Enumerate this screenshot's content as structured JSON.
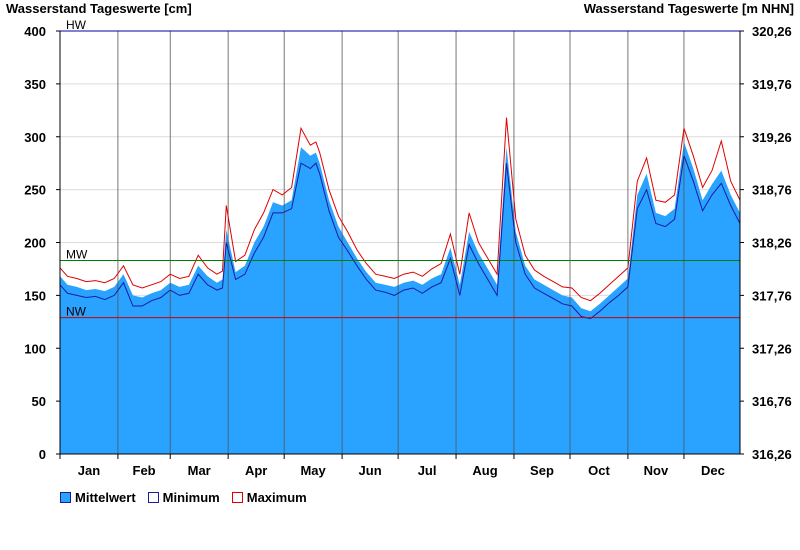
{
  "header": {
    "left_title": "Wasserstand Tageswerte [cm]",
    "right_title": "Wasserstand Tageswerte [m NHN]"
  },
  "colors": {
    "fill": "#29a3ff",
    "minimum": "#1b1b9e",
    "maximum": "#e00000",
    "hw": "#0000aa",
    "mw": "#008000",
    "nw": "#cc0000"
  },
  "chart_data": {
    "type": "area",
    "left_axis": {
      "label": "Wasserstand Tageswerte [cm]",
      "ylim": [
        0,
        400
      ],
      "ticks": [
        "0",
        "50",
        "100",
        "150",
        "200",
        "250",
        "300",
        "350",
        "400"
      ]
    },
    "right_axis": {
      "label": "Wasserstand Tageswerte [m NHN]",
      "ticks": [
        "316,26",
        "316,76",
        "317,26",
        "317,76",
        "318,26",
        "318,76",
        "319,26",
        "319,76",
        "320,26"
      ]
    },
    "months": [
      "Jan",
      "Feb",
      "Mar",
      "Apr",
      "May",
      "Jun",
      "Jul",
      "Aug",
      "Sep",
      "Oct",
      "Nov",
      "Dec"
    ],
    "reference_lines": [
      {
        "name": "HW",
        "value": 400
      },
      {
        "name": "MW",
        "value": 183
      },
      {
        "name": "NW",
        "value": 129
      }
    ],
    "series": [
      {
        "name": "Mittelwert",
        "x": [
          1,
          5,
          10,
          15,
          20,
          25,
          30,
          35,
          40,
          45,
          50,
          55,
          60,
          65,
          70,
          75,
          80,
          85,
          88,
          90,
          95,
          100,
          105,
          110,
          115,
          120,
          125,
          130,
          135,
          138,
          140,
          145,
          150,
          155,
          160,
          165,
          170,
          175,
          180,
          185,
          190,
          195,
          200,
          205,
          210,
          215,
          220,
          225,
          230,
          235,
          240,
          245,
          250,
          255,
          260,
          265,
          270,
          275,
          280,
          285,
          290,
          295,
          300,
          305,
          310,
          315,
          320,
          325,
          330,
          335,
          340,
          345,
          350,
          355,
          360,
          365
        ],
        "values": [
          168,
          160,
          158,
          155,
          156,
          154,
          158,
          170,
          150,
          148,
          152,
          155,
          162,
          158,
          160,
          178,
          168,
          162,
          165,
          212,
          172,
          178,
          200,
          215,
          238,
          235,
          240,
          290,
          282,
          285,
          275,
          240,
          215,
          200,
          185,
          172,
          162,
          160,
          158,
          162,
          164,
          160,
          166,
          170,
          195,
          160,
          210,
          190,
          175,
          160,
          290,
          210,
          178,
          165,
          160,
          155,
          150,
          148,
          138,
          135,
          142,
          150,
          158,
          166,
          245,
          265,
          228,
          225,
          232,
          295,
          270,
          240,
          255,
          268,
          245,
          228
        ]
      },
      {
        "name": "Minimum",
        "x": [
          1,
          5,
          10,
          15,
          20,
          25,
          30,
          35,
          40,
          45,
          50,
          55,
          60,
          65,
          70,
          75,
          80,
          85,
          88,
          90,
          95,
          100,
          105,
          110,
          115,
          120,
          125,
          130,
          135,
          138,
          140,
          145,
          150,
          155,
          160,
          165,
          170,
          175,
          180,
          185,
          190,
          195,
          200,
          205,
          210,
          215,
          220,
          225,
          230,
          235,
          240,
          245,
          250,
          255,
          260,
          265,
          270,
          275,
          280,
          285,
          290,
          295,
          300,
          305,
          310,
          315,
          320,
          325,
          330,
          335,
          340,
          345,
          350,
          355,
          360,
          365
        ],
        "values": [
          160,
          152,
          150,
          148,
          149,
          146,
          150,
          162,
          140,
          140,
          145,
          148,
          155,
          150,
          152,
          170,
          160,
          155,
          157,
          200,
          165,
          170,
          190,
          205,
          228,
          228,
          232,
          275,
          270,
          275,
          265,
          230,
          205,
          192,
          178,
          165,
          155,
          153,
          150,
          155,
          157,
          152,
          158,
          162,
          185,
          150,
          198,
          180,
          165,
          150,
          275,
          200,
          170,
          157,
          152,
          147,
          142,
          140,
          130,
          128,
          135,
          143,
          150,
          158,
          232,
          250,
          218,
          215,
          222,
          282,
          258,
          230,
          245,
          256,
          235,
          218
        ]
      },
      {
        "name": "Maximum",
        "x": [
          1,
          5,
          10,
          15,
          20,
          25,
          30,
          35,
          40,
          45,
          50,
          55,
          60,
          65,
          70,
          75,
          80,
          85,
          88,
          90,
          95,
          100,
          105,
          110,
          115,
          120,
          125,
          130,
          135,
          138,
          140,
          145,
          150,
          155,
          160,
          165,
          170,
          175,
          180,
          185,
          190,
          195,
          200,
          205,
          210,
          215,
          220,
          225,
          230,
          235,
          240,
          245,
          250,
          255,
          260,
          265,
          270,
          275,
          280,
          285,
          290,
          295,
          300,
          305,
          310,
          315,
          320,
          325,
          330,
          335,
          340,
          345,
          350,
          355,
          360,
          365
        ],
        "values": [
          176,
          168,
          166,
          163,
          164,
          162,
          166,
          178,
          160,
          157,
          160,
          163,
          170,
          166,
          168,
          188,
          176,
          170,
          173,
          235,
          182,
          188,
          212,
          228,
          250,
          245,
          252,
          308,
          292,
          295,
          285,
          250,
          225,
          210,
          193,
          180,
          170,
          168,
          166,
          170,
          172,
          168,
          175,
          180,
          208,
          170,
          228,
          200,
          185,
          170,
          318,
          222,
          188,
          174,
          168,
          163,
          158,
          157,
          148,
          145,
          152,
          160,
          168,
          176,
          258,
          280,
          240,
          238,
          245,
          308,
          282,
          252,
          268,
          296,
          258,
          240
        ]
      }
    ],
    "legend": [
      "Mittelwert",
      "Minimum",
      "Maximum"
    ],
    "grid": true,
    "legend_position": "bottom-left"
  }
}
